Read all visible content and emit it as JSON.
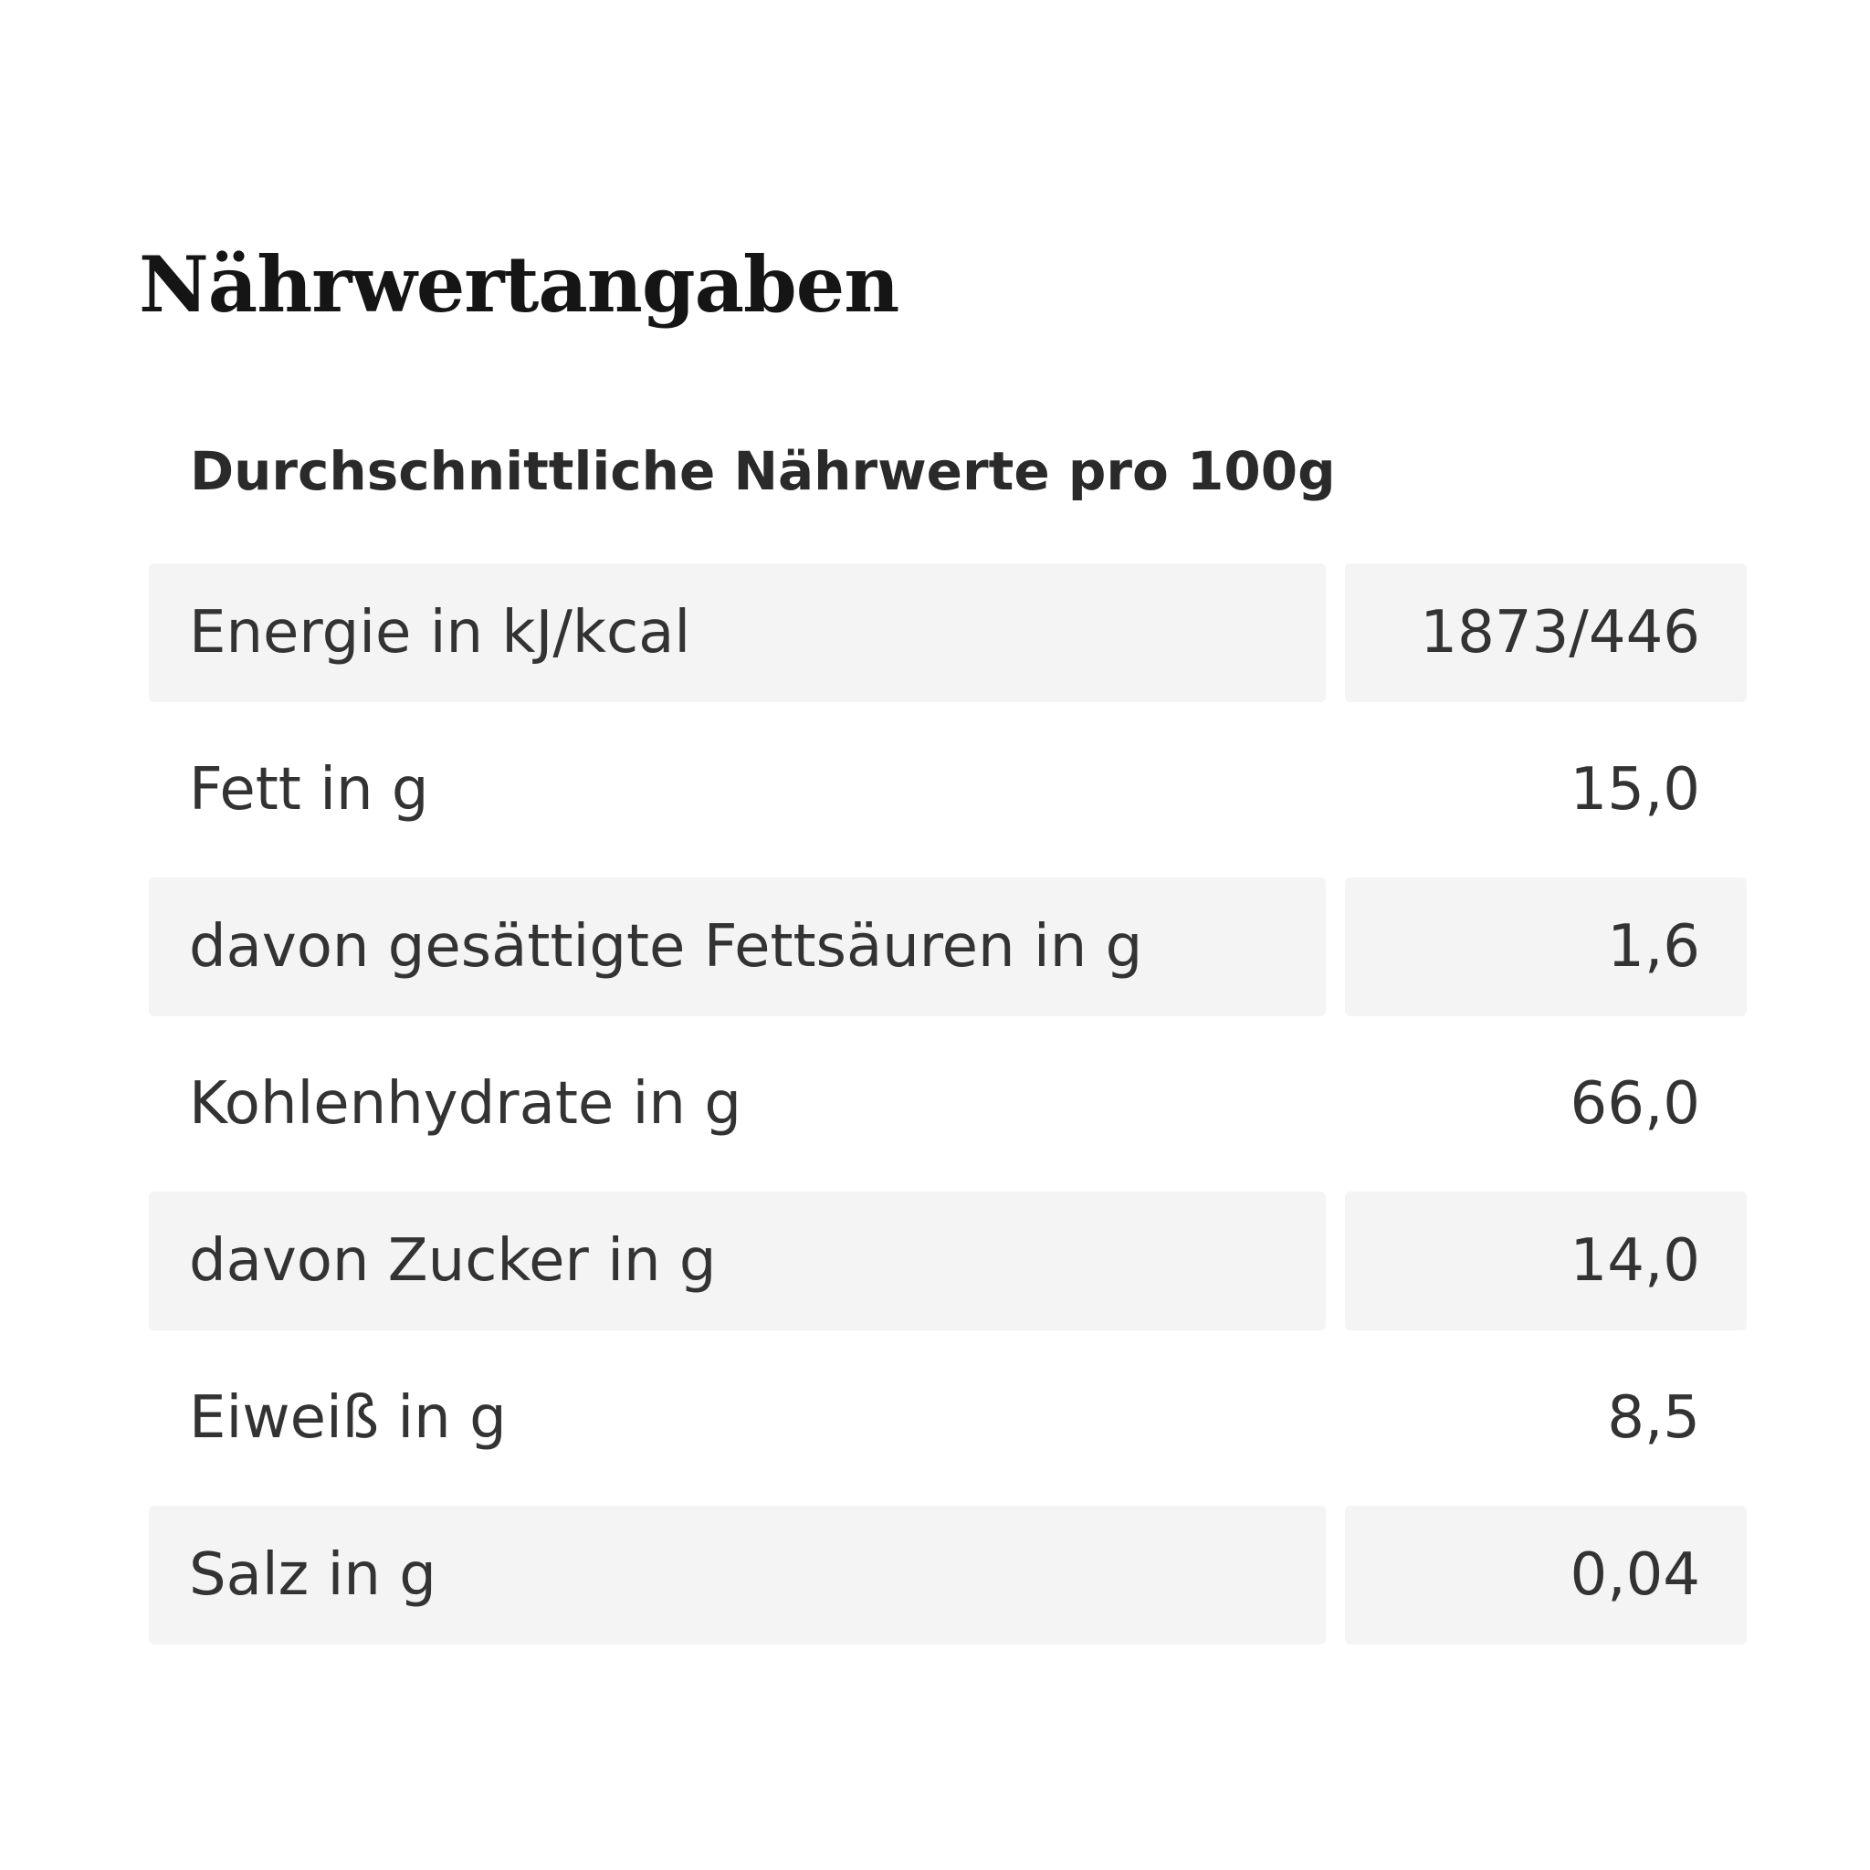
{
  "header": {
    "title": "Nährwertangaben",
    "subtitle": "Durchschnittliche Nährwerte pro 100g"
  },
  "table": {
    "rows": [
      [
        "Energie in kJ/kcal",
        "1873/446"
      ],
      [
        "Fett in g",
        "15,0"
      ],
      [
        "davon gesättigte Fettsäuren in g",
        "1,6"
      ],
      [
        "Kohlenhydrate in g",
        "66,0"
      ],
      [
        "davon Zucker in g",
        "14,0"
      ],
      [
        "Eiweiß in g",
        "8,5"
      ],
      [
        "Salz in g",
        "0,04"
      ]
    ]
  }
}
